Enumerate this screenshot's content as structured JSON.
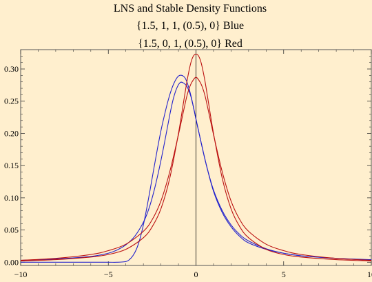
{
  "chart_data": {
    "type": "line",
    "title_lines": [
      "LNS and Stable Density Functions",
      "{1.5, 1, 1, (0.5), 0} Blue",
      "{1.5, 0, 1, (0.5), 0} Red"
    ],
    "xlabel": "",
    "ylabel": "",
    "xlim": [
      -10,
      10
    ],
    "ylim": [
      -0.005,
      0.33
    ],
    "x_ticks": [
      -10,
      -5,
      0,
      5,
      10
    ],
    "x_tick_labels": [
      "−10",
      "−5",
      "0",
      "5",
      "10"
    ],
    "y_ticks": [
      0.0,
      0.05,
      0.1,
      0.15,
      0.2,
      0.25,
      0.3
    ],
    "y_tick_labels": [
      "0.00",
      "0.05",
      "0.10",
      "0.15",
      "0.20",
      "0.25",
      "0.30"
    ],
    "grid": false,
    "colors": {
      "blue": "#2222cc",
      "red": "#bb1111",
      "background": "#ffefce"
    },
    "series": [
      {
        "color": "blue",
        "x": [
          -10,
          -8,
          -6,
          -5,
          -4.5,
          -4,
          -3.5,
          -3,
          -2.7,
          -2.4,
          -2.1,
          -1.8,
          -1.5,
          -1.3,
          -1.1,
          -0.9,
          -0.7,
          -0.5,
          -0.3,
          -0.1,
          0,
          0.3,
          0.6,
          1,
          1.5,
          2,
          2.5,
          3,
          4,
          5,
          6,
          8,
          10
        ],
        "y": [
          0.003,
          0.005,
          0.009,
          0.014,
          0.019,
          0.027,
          0.04,
          0.062,
          0.082,
          0.11,
          0.145,
          0.185,
          0.228,
          0.253,
          0.27,
          0.279,
          0.278,
          0.272,
          0.258,
          0.235,
          0.222,
          0.185,
          0.15,
          0.11,
          0.077,
          0.055,
          0.04,
          0.03,
          0.02,
          0.014,
          0.01,
          0.006,
          0.004
        ]
      },
      {
        "color": "blue",
        "x": [
          -10,
          -8,
          -6,
          -5,
          -4.5,
          -4,
          -3.8,
          -3.6,
          -3.4,
          -3.2,
          -3,
          -2.8,
          -2.6,
          -2.4,
          -2.2,
          -2,
          -1.8,
          -1.6,
          -1.4,
          -1.2,
          -1,
          -0.8,
          -0.6,
          -0.4,
          -0.2,
          0,
          0.3,
          0.6,
          1,
          1.5,
          2,
          2.5,
          3,
          4,
          5,
          6,
          8,
          10
        ],
        "y": [
          0.0,
          0.0,
          0.0,
          0.0,
          0.0,
          0.001,
          0.004,
          0.01,
          0.02,
          0.036,
          0.058,
          0.085,
          0.115,
          0.146,
          0.176,
          0.204,
          0.228,
          0.25,
          0.268,
          0.281,
          0.289,
          0.29,
          0.285,
          0.27,
          0.248,
          0.222,
          0.185,
          0.15,
          0.112,
          0.08,
          0.058,
          0.043,
          0.033,
          0.021,
          0.014,
          0.01,
          0.006,
          0.003
        ]
      },
      {
        "color": "red",
        "x": [
          -10,
          -8,
          -6,
          -5,
          -4,
          -3,
          -2.5,
          -2,
          -1.5,
          -1,
          -0.7,
          -0.5,
          -0.3,
          -0.15,
          0,
          0.15,
          0.3,
          0.5,
          0.7,
          1,
          1.5,
          2,
          2.5,
          3,
          4,
          5,
          6,
          8,
          10
        ],
        "y": [
          0.002,
          0.004,
          0.008,
          0.012,
          0.02,
          0.038,
          0.055,
          0.083,
          0.13,
          0.2,
          0.25,
          0.283,
          0.309,
          0.32,
          0.323,
          0.32,
          0.309,
          0.283,
          0.25,
          0.2,
          0.13,
          0.083,
          0.055,
          0.038,
          0.02,
          0.012,
          0.008,
          0.004,
          0.002
        ]
      },
      {
        "color": "red",
        "x": [
          -10,
          -8,
          -6,
          -5,
          -4,
          -3,
          -2.5,
          -2,
          -1.5,
          -1,
          -0.7,
          -0.5,
          -0.3,
          -0.1,
          0,
          0.1,
          0.3,
          0.5,
          0.7,
          1,
          1.5,
          2,
          2.5,
          3,
          4,
          5,
          6,
          8,
          10
        ],
        "y": [
          0.003,
          0.006,
          0.012,
          0.018,
          0.028,
          0.048,
          0.066,
          0.095,
          0.14,
          0.198,
          0.236,
          0.26,
          0.276,
          0.285,
          0.287,
          0.285,
          0.276,
          0.26,
          0.236,
          0.198,
          0.14,
          0.095,
          0.066,
          0.048,
          0.028,
          0.018,
          0.012,
          0.006,
          0.003
        ]
      }
    ]
  }
}
